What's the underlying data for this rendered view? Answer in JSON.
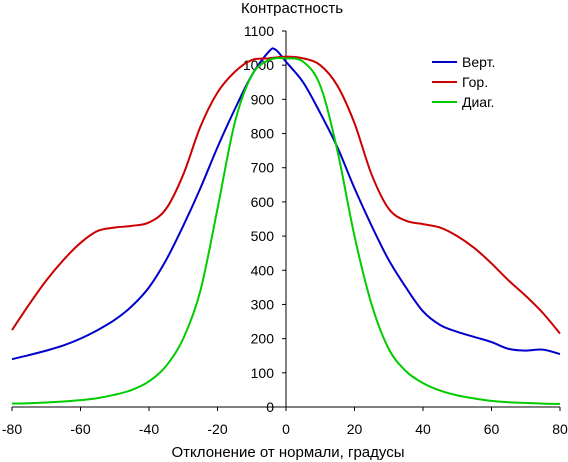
{
  "chart_data": {
    "type": "line",
    "title": "",
    "xlabel": "Отклонение от нормали, градусы",
    "ylabel": "Контрастность",
    "xlim": [
      -80,
      80
    ],
    "ylim": [
      0,
      1100
    ],
    "x_ticks": [
      -80,
      -60,
      -40,
      -20,
      0,
      20,
      40,
      60,
      80
    ],
    "y_ticks": [
      0,
      100,
      200,
      300,
      400,
      500,
      600,
      700,
      800,
      900,
      1000,
      1100
    ],
    "grid": false,
    "legend_position": "top-right",
    "series": [
      {
        "name": "Верт.",
        "color": "#0000cc",
        "x": [
          -80,
          -75,
          -70,
          -65,
          -60,
          -55,
          -50,
          -45,
          -40,
          -35,
          -30,
          -25,
          -20,
          -15,
          -10,
          -5,
          -3,
          0,
          5,
          10,
          15,
          20,
          25,
          30,
          35,
          40,
          45,
          50,
          55,
          60,
          65,
          70,
          75,
          80
        ],
        "y": [
          140,
          152,
          165,
          180,
          200,
          225,
          255,
          295,
          350,
          430,
          530,
          640,
          760,
          870,
          970,
          1040,
          1045,
          1010,
          950,
          860,
          760,
          640,
          530,
          430,
          350,
          280,
          240,
          220,
          205,
          190,
          170,
          165,
          168,
          155
        ]
      },
      {
        "name": "Гор.",
        "color": "#cc0000",
        "x": [
          -80,
          -75,
          -70,
          -65,
          -60,
          -55,
          -50,
          -45,
          -40,
          -35,
          -30,
          -25,
          -20,
          -15,
          -10,
          -5,
          0,
          5,
          10,
          15,
          20,
          25,
          30,
          35,
          40,
          45,
          50,
          55,
          60,
          65,
          70,
          75,
          80
        ],
        "y": [
          225,
          300,
          370,
          430,
          480,
          515,
          525,
          530,
          540,
          580,
          680,
          820,
          920,
          980,
          1015,
          1020,
          1025,
          1020,
          1000,
          940,
          830,
          680,
          580,
          545,
          535,
          525,
          500,
          465,
          420,
          370,
          325,
          275,
          215
        ]
      },
      {
        "name": "Диаг.",
        "color": "#00cc00",
        "x": [
          -80,
          -75,
          -70,
          -65,
          -60,
          -55,
          -50,
          -45,
          -40,
          -35,
          -30,
          -25,
          -20,
          -15,
          -10,
          -5,
          0,
          5,
          10,
          15,
          20,
          25,
          30,
          35,
          40,
          45,
          50,
          55,
          60,
          65,
          70,
          75,
          80
        ],
        "y": [
          10,
          11,
          13,
          16,
          20,
          26,
          36,
          50,
          75,
          120,
          200,
          340,
          580,
          830,
          970,
          1015,
          1020,
          1010,
          940,
          750,
          500,
          300,
          170,
          105,
          70,
          48,
          34,
          25,
          18,
          14,
          12,
          10,
          9
        ]
      }
    ]
  }
}
